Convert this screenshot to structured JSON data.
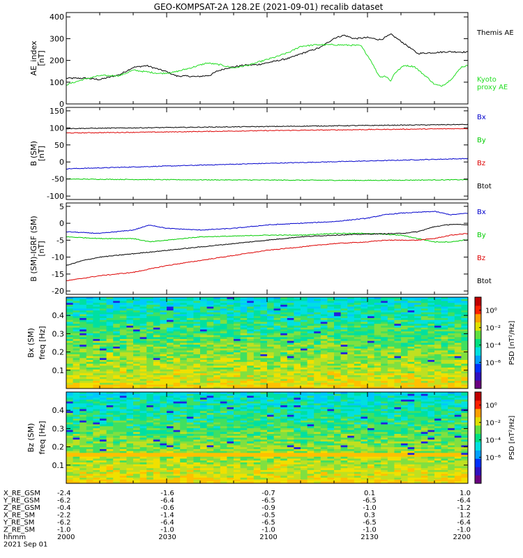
{
  "title": "GEO-KOMPSAT-2A 128.2E (2021-09-01) recalib dataset",
  "colors": {
    "black": "#000000",
    "blue": "#0000cc",
    "green": "#00cc00",
    "red": "#dd0000",
    "kyoto": "#22dd22"
  },
  "chart_data": [
    {
      "id": "ae",
      "type": "line",
      "ylabel": "AE_index\n[nT]",
      "ylim": [
        0,
        420
      ],
      "yticks": [
        "0",
        "100",
        "200",
        "300",
        "400"
      ],
      "ytick_values": [
        0,
        100,
        200,
        300,
        400
      ],
      "xlim": [
        0,
        120
      ],
      "x_unit": "minutes since 20:00 UT",
      "series": [
        {
          "name": "Themis AE",
          "color": "#000000",
          "x": [
            0,
            6,
            10,
            16,
            20,
            24,
            27,
            30,
            33,
            36,
            39,
            43,
            45,
            48,
            53,
            57,
            62,
            67,
            70,
            76,
            80,
            83,
            86,
            90,
            94,
            97,
            100,
            105,
            110,
            114,
            120
          ],
          "y": [
            118,
            118,
            112,
            135,
            168,
            176,
            162,
            148,
            128,
            128,
            125,
            132,
            150,
            165,
            178,
            180,
            195,
            212,
            230,
            260,
            302,
            316,
            300,
            305,
            295,
            320,
            288,
            232,
            236,
            240,
            238
          ]
        },
        {
          "name": "Kyoto\nproxy AE",
          "color": "#22dd22",
          "x": [
            0,
            5,
            10,
            16,
            20,
            28,
            32,
            37,
            42,
            46,
            50,
            55,
            58,
            63,
            67,
            70,
            75,
            80,
            85,
            88,
            91,
            93,
            94,
            95,
            96,
            97,
            98,
            100,
            101,
            102,
            104,
            106,
            108,
            110,
            112,
            114,
            116,
            118,
            120
          ],
          "y": [
            88,
            112,
            130,
            130,
            155,
            140,
            145,
            165,
            188,
            180,
            165,
            180,
            195,
            218,
            240,
            265,
            272,
            272,
            270,
            268,
            200,
            140,
            122,
            130,
            120,
            105,
            140,
            165,
            178,
            175,
            172,
            145,
            120,
            90,
            82,
            100,
            130,
            170,
            176
          ]
        }
      ]
    },
    {
      "id": "bsm",
      "type": "line",
      "ylabel": "B (SM)\n[nT]",
      "ylim": [
        -110,
        160
      ],
      "yticks": [
        "-100",
        "-50",
        "0",
        "50",
        "100",
        "150"
      ],
      "ytick_values": [
        -100,
        -50,
        0,
        50,
        100,
        150
      ],
      "xlim": [
        0,
        120
      ],
      "legend": [
        "Bx",
        "By",
        "Bz",
        "Btot"
      ],
      "series": [
        {
          "name": "Bx",
          "color": "#0000cc",
          "x": [
            0,
            30,
            60,
            90,
            120
          ],
          "y": [
            -20,
            -12,
            -4,
            3,
            10
          ]
        },
        {
          "name": "By",
          "color": "#00cc00",
          "x": [
            0,
            30,
            60,
            90,
            120
          ],
          "y": [
            -50,
            -52,
            -53,
            -54,
            -52
          ]
        },
        {
          "name": "Bz",
          "color": "#dd0000",
          "x": [
            0,
            30,
            60,
            90,
            120
          ],
          "y": [
            85,
            88,
            92,
            95,
            98
          ]
        },
        {
          "name": "Btot",
          "color": "#000000",
          "x": [
            0,
            30,
            60,
            90,
            120
          ],
          "y": [
            98,
            101,
            104,
            107,
            110
          ]
        }
      ]
    },
    {
      "id": "bres",
      "type": "line",
      "ylabel": "B (SM)-IGRF (SM)\n[nT]",
      "ylim": [
        -21,
        6
      ],
      "yticks": [
        "-20",
        "-15",
        "-10",
        "-5",
        "0",
        "5"
      ],
      "ytick_values": [
        -20,
        -15,
        -10,
        -5,
        0,
        5
      ],
      "xlim": [
        0,
        120
      ],
      "legend": [
        "Bx",
        "By",
        "Bz",
        "Btot"
      ],
      "series": [
        {
          "name": "Bx",
          "color": "#0000cc",
          "x": [
            0,
            10,
            20,
            25,
            30,
            40,
            50,
            60,
            70,
            80,
            90,
            95,
            100,
            110,
            115,
            120
          ],
          "y": [
            -2.5,
            -3,
            -2,
            -0.5,
            -1.5,
            -2,
            -1.5,
            -0.5,
            0,
            0.5,
            1.5,
            2.5,
            3,
            3.5,
            2.5,
            3
          ]
        },
        {
          "name": "By",
          "color": "#00cc00",
          "x": [
            0,
            10,
            20,
            25,
            30,
            40,
            50,
            60,
            70,
            80,
            90,
            100,
            105,
            110,
            115,
            120
          ],
          "y": [
            -4,
            -4.5,
            -4.5,
            -5.5,
            -5,
            -4,
            -3.8,
            -3.5,
            -3.5,
            -3,
            -3,
            -3.5,
            -4.5,
            -5.5,
            -5.5,
            -4.8
          ]
        },
        {
          "name": "Bz",
          "color": "#dd0000",
          "x": [
            0,
            10,
            20,
            30,
            40,
            50,
            60,
            70,
            80,
            90,
            95,
            100,
            105,
            110,
            115,
            120
          ],
          "y": [
            -17,
            -15.5,
            -14.5,
            -12.5,
            -11,
            -9.5,
            -8,
            -7,
            -6,
            -5.5,
            -5,
            -5,
            -5,
            -4.5,
            -3.5,
            -3
          ]
        },
        {
          "name": "Btot",
          "color": "#000000",
          "x": [
            0,
            5,
            10,
            20,
            30,
            40,
            50,
            60,
            70,
            80,
            90,
            100,
            105,
            110,
            115,
            120
          ],
          "y": [
            -12.5,
            -11,
            -10,
            -9,
            -8,
            -7,
            -6,
            -5,
            -4,
            -3.5,
            -3.2,
            -3,
            -2.5,
            -1,
            -0.3,
            -0.5
          ]
        }
      ]
    },
    {
      "id": "bx_spec",
      "type": "heatmap",
      "title": "Bx (SM)",
      "ylabel": "freq [Hz]",
      "ylim": [
        0,
        0.5
      ],
      "yticks": [
        "0.1",
        "0.2",
        "0.3",
        "0.4"
      ],
      "ytick_values": [
        0.1,
        0.2,
        0.3,
        0.4
      ],
      "xlim": [
        0,
        120
      ],
      "colorbar_label": "PSD [nT²/Hz]",
      "colorbar_ticks": [
        "10⁰",
        "10⁻²",
        "10⁻⁴",
        "10⁻⁶"
      ],
      "colorbar_tick_exponents": [
        0,
        -2,
        -4,
        -6
      ]
    },
    {
      "id": "bz_spec",
      "type": "heatmap",
      "title": "Bz (SM)",
      "ylabel": "freq [Hz]",
      "ylim": [
        0,
        0.5
      ],
      "yticks": [
        "0.1",
        "0.2",
        "0.3",
        "0.4"
      ],
      "ytick_values": [
        0.1,
        0.2,
        0.3,
        0.4
      ],
      "xlim": [
        0,
        120
      ],
      "colorbar_label": "PSD [nT²/Hz]",
      "colorbar_ticks": [
        "10⁰",
        "10⁻²",
        "10⁻⁴",
        "10⁻⁶"
      ],
      "colorbar_tick_exponents": [
        0,
        -2,
        -4,
        -6
      ]
    }
  ],
  "orbit_table": {
    "labels": [
      "X_RE_GSM",
      "Y_RE_GSM",
      "Z_RE_GSM",
      "X_RE_SM",
      "Y_RE_SM",
      "Z_RE_SM",
      "hhmm"
    ],
    "columns": [
      [
        "-2.4",
        "-6.2",
        "-0.4",
        "-2.2",
        "-6.2",
        "-1.0",
        "2000"
      ],
      [
        "-1.6",
        "-6.4",
        "-0.6",
        "-1.4",
        "-6.4",
        "-1.0",
        "2030"
      ],
      [
        "-0.7",
        "-6.5",
        "-0.9",
        "-0.5",
        "-6.5",
        "-1.0",
        "2100"
      ],
      [
        "0.1",
        "-6.5",
        "-1.0",
        "0.3",
        "-6.5",
        "-1.0",
        "2130"
      ],
      [
        "1.0",
        "-6.4",
        "-1.2",
        "1.2",
        "-6.4",
        "-1.0",
        "2200"
      ]
    ],
    "date": "2021 Sep 01"
  }
}
